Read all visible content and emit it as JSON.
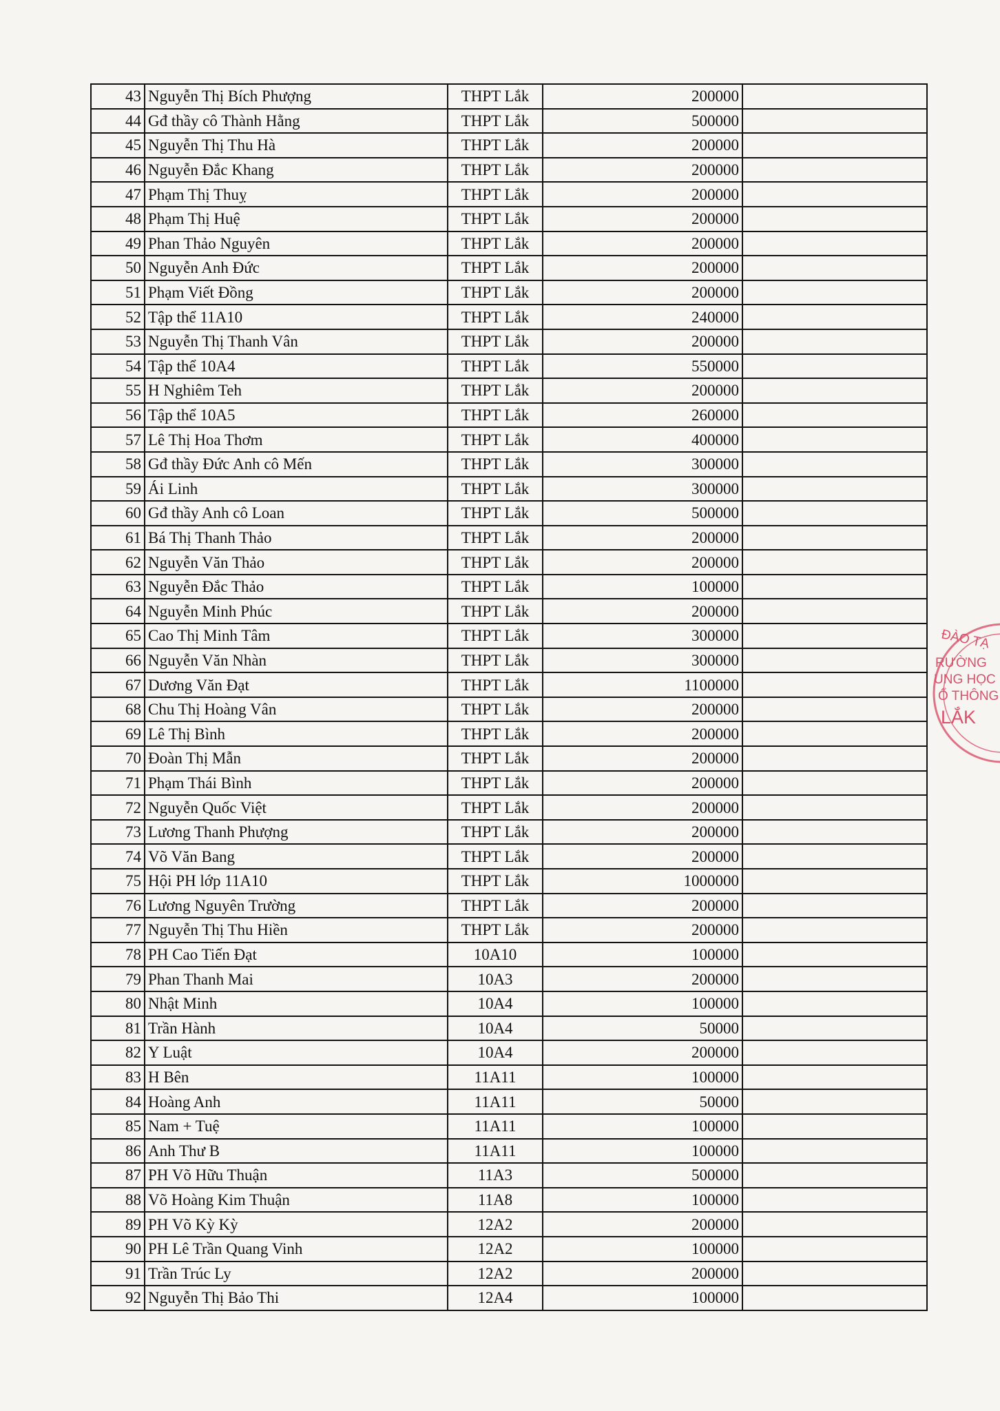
{
  "table": {
    "rows": [
      [
        43,
        "Nguyễn Thị Bích Phượng",
        "THPT Lắk",
        200000
      ],
      [
        44,
        "Gđ thầy cô Thành Hằng",
        "THPT Lắk",
        500000
      ],
      [
        45,
        "Nguyễn Thị Thu Hà",
        "THPT Lắk",
        200000
      ],
      [
        46,
        "Nguyễn Đắc Khang",
        "THPT Lắk",
        200000
      ],
      [
        47,
        "Phạm Thị Thuỵ",
        "THPT Lắk",
        200000
      ],
      [
        48,
        "Phạm Thị Huệ",
        "THPT Lắk",
        200000
      ],
      [
        49,
        "Phan Thảo Nguyên",
        "THPT Lắk",
        200000
      ],
      [
        50,
        "Nguyễn Anh Đức",
        "THPT Lắk",
        200000
      ],
      [
        51,
        "Phạm Viết Đồng",
        "THPT Lắk",
        200000
      ],
      [
        52,
        "Tập thể 11A10",
        "THPT Lắk",
        240000
      ],
      [
        53,
        "Nguyễn Thị Thanh Vân",
        "THPT Lắk",
        200000
      ],
      [
        54,
        "Tập thể 10A4",
        "THPT Lắk",
        550000
      ],
      [
        55,
        "H Nghiêm Teh",
        "THPT Lắk",
        200000
      ],
      [
        56,
        "Tập thể 10A5",
        "THPT Lắk",
        260000
      ],
      [
        57,
        "Lê Thị Hoa Thơm",
        "THPT Lắk",
        400000
      ],
      [
        58,
        "Gđ thầy Đức Anh cô Mến",
        "THPT Lắk",
        300000
      ],
      [
        59,
        "Ái Linh",
        "THPT Lắk",
        300000
      ],
      [
        60,
        "Gđ thầy Anh cô Loan",
        "THPT Lắk",
        500000
      ],
      [
        61,
        "Bá Thị Thanh Thảo",
        "THPT Lắk",
        200000
      ],
      [
        62,
        "Nguyễn Văn Thảo",
        "THPT Lắk",
        200000
      ],
      [
        63,
        "Nguyễn Đắc Thảo",
        "THPT Lắk",
        100000
      ],
      [
        64,
        "Nguyễn Minh Phúc",
        "THPT Lắk",
        200000
      ],
      [
        65,
        "Cao Thị Minh Tâm",
        "THPT Lắk",
        300000
      ],
      [
        66,
        "Nguyễn Văn Nhàn",
        "THPT Lắk",
        300000
      ],
      [
        67,
        "Dương Văn Đạt",
        "THPT Lắk",
        1100000
      ],
      [
        68,
        "Chu Thị Hoàng Vân",
        "THPT Lắk",
        200000
      ],
      [
        69,
        "Lê Thị Bình",
        "THPT Lắk",
        200000
      ],
      [
        70,
        "Đoàn Thị Mẫn",
        "THPT Lắk",
        200000
      ],
      [
        71,
        "Phạm Thái Bình",
        "THPT Lắk",
        200000
      ],
      [
        72,
        "Nguyễn Quốc Việt",
        "THPT Lắk",
        200000
      ],
      [
        73,
        "Lương Thanh Phượng",
        "THPT Lắk",
        200000
      ],
      [
        74,
        "Võ Văn Bang",
        "THPT Lắk",
        200000
      ],
      [
        75,
        "Hội PH lớp 11A10",
        "THPT Lắk",
        1000000
      ],
      [
        76,
        "Lương Nguyên Trường",
        "THPT Lắk",
        200000
      ],
      [
        77,
        "Nguyễn Thị Thu Hiền",
        "THPT Lắk",
        200000
      ],
      [
        78,
        "PH Cao Tiến Đạt",
        "10A10",
        100000
      ],
      [
        79,
        "Phan Thanh Mai",
        "10A3",
        200000
      ],
      [
        80,
        "Nhật Minh",
        "10A4",
        100000
      ],
      [
        81,
        "Trần Hành",
        "10A4",
        50000
      ],
      [
        82,
        "Y Luật",
        "10A4",
        200000
      ],
      [
        83,
        "H Bên",
        "11A11",
        100000
      ],
      [
        84,
        "Hoàng Anh",
        "11A11",
        50000
      ],
      [
        85,
        "Nam + Tuệ",
        "11A11",
        100000
      ],
      [
        86,
        "Anh Thư B",
        "11A11",
        100000
      ],
      [
        87,
        "PH Võ Hữu Thuận",
        "11A3",
        500000
      ],
      [
        88,
        "Võ Hoàng Kim Thuận",
        "11A8",
        100000
      ],
      [
        89,
        "PH Võ Kỳ Kỳ",
        "12A2",
        200000
      ],
      [
        90,
        "PH Lê Trần Quang Vinh",
        "12A2",
        100000
      ],
      [
        91,
        "Trần Trúc Ly",
        "12A2",
        200000
      ],
      [
        92,
        "Nguyễn Thị Bảo Thi",
        "12A4",
        100000
      ]
    ]
  },
  "stamp": {
    "lines": [
      "ĐÀO TẠ",
      "RƯỜNG",
      "UNG HỌC",
      "Ổ THÔNG",
      "LẮK"
    ]
  }
}
